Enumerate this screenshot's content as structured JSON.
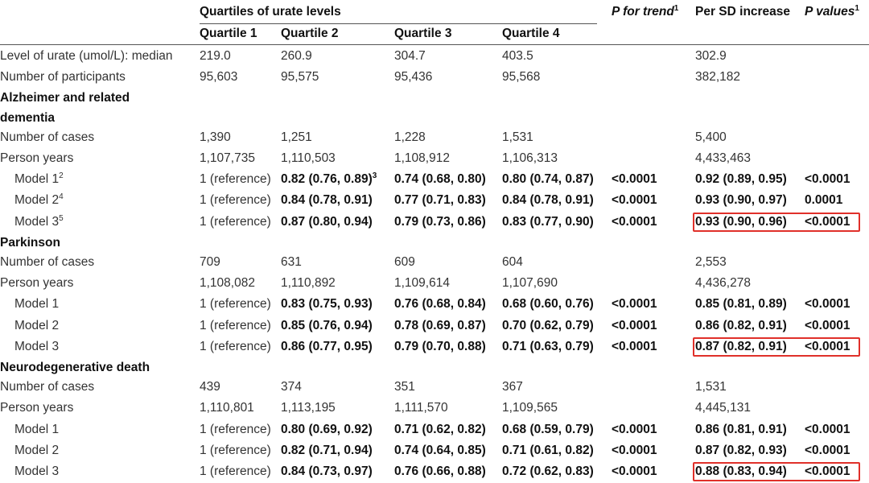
{
  "header": {
    "group_label": "Quartiles of urate levels",
    "p_trend": "P for trend",
    "p_trend_sup": "1",
    "per_sd": "Per SD increase",
    "p_values": "P values",
    "p_values_sup": "1",
    "quartiles": [
      "Quartile 1",
      "Quartile 2",
      "Quartile 3",
      "Quartile 4"
    ]
  },
  "general_rows": [
    {
      "label": "Level of urate (umol/L): median",
      "q1": "219.0",
      "q2": "260.9",
      "q3": "304.7",
      "q4": "403.5",
      "trend": "",
      "sd": "302.9",
      "p": ""
    },
    {
      "label": "Number of participants",
      "q1": "95,603",
      "q2": "95,575",
      "q3": "95,436",
      "q4": "95,568",
      "trend": "",
      "sd": "382,182",
      "p": ""
    }
  ],
  "sections": [
    {
      "title_line1": "Alzheimer and related",
      "title_line2": "dementia",
      "rows": [
        {
          "label": "Number of cases",
          "sup": "",
          "q1": "1,390",
          "q2": "1,251",
          "q3": "1,228",
          "q4": "1,531",
          "trend": "",
          "sd": "5,400",
          "p": ""
        },
        {
          "label": "Person years",
          "sup": "",
          "q1": "1,107,735",
          "q2": "1,110,503",
          "q3": "1,108,912",
          "q4": "1,106,313",
          "trend": "",
          "sd": "4,433,463",
          "p": ""
        },
        {
          "label": "Model 1",
          "sup": "2",
          "q1": "1 (reference)",
          "q2": "0.82 (0.76, 0.89)",
          "q2sup": "3",
          "q3": "0.74 (0.68, 0.80)",
          "q4": "0.80 (0.74, 0.87)",
          "trend": "<0.0001",
          "sd": "0.92 (0.89, 0.95)",
          "p": "<0.0001"
        },
        {
          "label": "Model 2",
          "sup": "4",
          "q1": "1 (reference)",
          "q2": "0.84 (0.78, 0.91)",
          "q2sup": "",
          "q3": "0.77 (0.71, 0.83)",
          "q4": "0.84 (0.78, 0.91)",
          "trend": "<0.0001",
          "sd": "0.93 (0.90, 0.97)",
          "p": "0.0001"
        },
        {
          "label": "Model 3",
          "sup": "5",
          "q1": "1 (reference)",
          "q2": "0.87 (0.80, 0.94)",
          "q2sup": "",
          "q3": "0.79 (0.73, 0.86)",
          "q4": "0.83 (0.77, 0.90)",
          "trend": "<0.0001",
          "sd": "0.93 (0.90, 0.96)",
          "p": "<0.0001"
        }
      ]
    },
    {
      "title_line1": "Parkinson",
      "title_line2": "",
      "rows": [
        {
          "label": "Number of cases",
          "sup": "",
          "q1": "709",
          "q2": "631",
          "q3": "609",
          "q4": "604",
          "trend": "",
          "sd": "2,553",
          "p": ""
        },
        {
          "label": "Person years",
          "sup": "",
          "q1": "1,108,082",
          "q2": "1,110,892",
          "q3": "1,109,614",
          "q4": "1,107,690",
          "trend": "",
          "sd": "4,436,278",
          "p": ""
        },
        {
          "label": "Model 1",
          "sup": "",
          "q1": "1 (reference)",
          "q2": "0.83 (0.75, 0.93)",
          "q2sup": "",
          "q3": "0.76 (0.68, 0.84)",
          "q4": "0.68 (0.60, 0.76)",
          "trend": "<0.0001",
          "sd": "0.85 (0.81, 0.89)",
          "p": "<0.0001"
        },
        {
          "label": "Model 2",
          "sup": "",
          "q1": "1 (reference)",
          "q2": "0.85 (0.76, 0.94)",
          "q2sup": "",
          "q3": "0.78 (0.69, 0.87)",
          "q4": "0.70 (0.62, 0.79)",
          "trend": "<0.0001",
          "sd": "0.86 (0.82, 0.91)",
          "p": "<0.0001"
        },
        {
          "label": "Model 3",
          "sup": "",
          "q1": "1 (reference)",
          "q2": "0.86 (0.77, 0.95)",
          "q2sup": "",
          "q3": "0.79 (0.70, 0.88)",
          "q4": "0.71 (0.63, 0.79)",
          "trend": "<0.0001",
          "sd": "0.87 (0.82, 0.91)",
          "p": "<0.0001"
        }
      ]
    },
    {
      "title_line1": "Neurodegenerative death",
      "title_line2": "",
      "rows": [
        {
          "label": "Number of cases",
          "sup": "",
          "q1": "439",
          "q2": "374",
          "q3": "351",
          "q4": "367",
          "trend": "",
          "sd": "1,531",
          "p": ""
        },
        {
          "label": "Person years",
          "sup": "",
          "q1": "1,110,801",
          "q2": "1,113,195",
          "q3": "1,111,570",
          "q4": "1,109,565",
          "trend": "",
          "sd": "4,445,131",
          "p": ""
        },
        {
          "label": "Model 1",
          "sup": "",
          "q1": "1 (reference)",
          "q2": "0.80 (0.69, 0.92)",
          "q2sup": "",
          "q3": "0.71 (0.62, 0.82)",
          "q4": "0.68 (0.59, 0.79)",
          "trend": "<0.0001",
          "sd": "0.86 (0.81, 0.91)",
          "p": "<0.0001"
        },
        {
          "label": "Model 2",
          "sup": "",
          "q1": "1 (reference)",
          "q2": "0.82 (0.71, 0.94)",
          "q2sup": "",
          "q3": "0.74 (0.64, 0.85)",
          "q4": "0.71 (0.61, 0.82)",
          "trend": "<0.0001",
          "sd": "0.87 (0.82, 0.93)",
          "p": "<0.0001"
        },
        {
          "label": "Model 3",
          "sup": "",
          "q1": "1 (reference)",
          "q2": "0.84 (0.73, 0.97)",
          "q2sup": "",
          "q3": "0.76 (0.66, 0.88)",
          "q4": "0.72 (0.62, 0.83)",
          "trend": "<0.0001",
          "sd": "0.88 (0.83, 0.94)",
          "p": "<0.0001"
        }
      ]
    }
  ],
  "highlight_color": "#e0302a"
}
